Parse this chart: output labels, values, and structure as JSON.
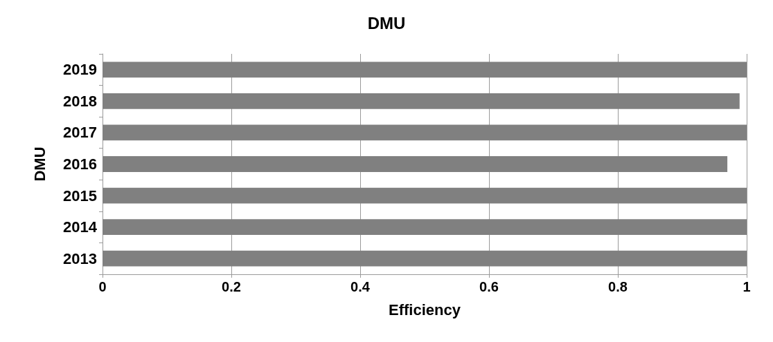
{
  "chart_data": {
    "type": "bar",
    "orientation": "horizontal",
    "title": "DMU",
    "xlabel": "Efficiency",
    "ylabel": "DMU",
    "categories": [
      "2019",
      "2018",
      "2017",
      "2016",
      "2015",
      "2014",
      "2013"
    ],
    "values": [
      1,
      0.989,
      1,
      0.97,
      1,
      1,
      1
    ],
    "color": "#808080",
    "xlim": [
      0,
      1
    ],
    "xticks": [
      0,
      0.2,
      0.4,
      0.6,
      0.8,
      1
    ],
    "grid": "x"
  }
}
